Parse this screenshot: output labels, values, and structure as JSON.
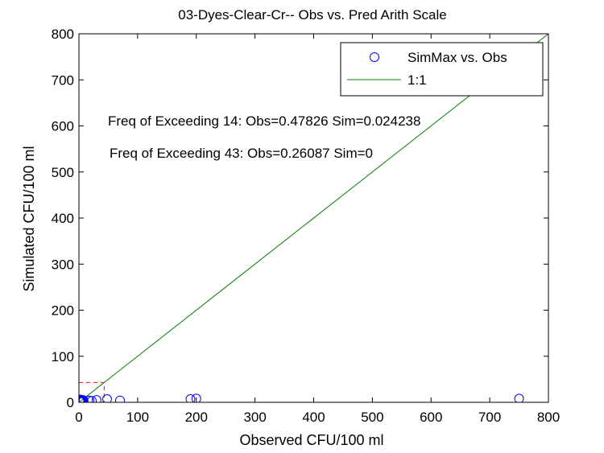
{
  "chart_data": {
    "type": "scatter",
    "title": "03-Dyes-Clear-Cr-- Obs vs. Pred Arith Scale",
    "xlabel": "Observed CFU/100 ml",
    "ylabel": "Simulated CFU/100 ml",
    "xlim": [
      0,
      800
    ],
    "ylim": [
      0,
      800
    ],
    "xticks": [
      "0",
      "100",
      "200",
      "300",
      "400",
      "500",
      "600",
      "700",
      "800"
    ],
    "yticks": [
      "0",
      "100",
      "200",
      "300",
      "400",
      "500",
      "600",
      "700",
      "800"
    ],
    "grid": false,
    "legend_position": "top-right",
    "series": [
      {
        "name": "SimMax vs. Obs",
        "kind": "scatter",
        "marker": "circle-open",
        "color": "#0000ff",
        "points": [
          [
            1,
            2
          ],
          [
            1,
            3
          ],
          [
            2,
            2
          ],
          [
            2,
            4
          ],
          [
            3,
            3
          ],
          [
            3,
            2
          ],
          [
            4,
            4
          ],
          [
            5,
            3
          ],
          [
            1,
            5
          ],
          [
            6,
            4
          ],
          [
            2,
            6
          ],
          [
            4,
            1
          ],
          [
            7,
            5
          ],
          [
            5,
            2
          ],
          [
            3,
            6
          ],
          [
            8,
            3
          ],
          [
            18,
            4
          ],
          [
            22,
            3
          ],
          [
            30,
            5
          ],
          [
            48,
            7
          ],
          [
            70,
            4
          ],
          [
            190,
            7
          ],
          [
            200,
            8
          ],
          [
            750,
            8
          ]
        ]
      },
      {
        "name": "1:1",
        "kind": "line",
        "color": "#008000",
        "points": [
          [
            0,
            0
          ],
          [
            800,
            800
          ]
        ]
      }
    ],
    "threshold_box": {
      "x": [
        0,
        43
      ],
      "y": [
        0,
        43
      ],
      "color": "#ff0000",
      "style": "dashed"
    },
    "annotations": [
      "Freq of Exceeding 14: Obs=0.47826 Sim=0.024238",
      "Freq of Exceeding 43: Obs=0.26087 Sim=0"
    ]
  }
}
